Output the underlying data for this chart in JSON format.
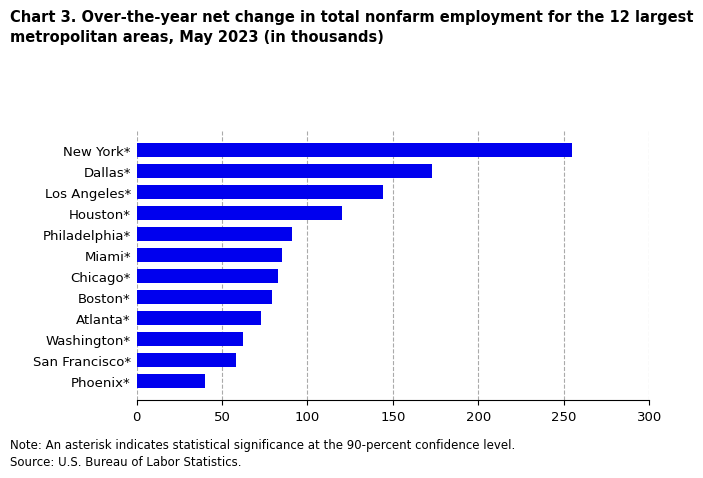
{
  "title_line1": "Chart 3. Over-the-year net change in total nonfarm employment for the 12 largest",
  "title_line2": "metropolitan areas, May 2023 (in thousands)",
  "categories": [
    "Phoenix*",
    "San Francisco*",
    "Washington*",
    "Atlanta*",
    "Boston*",
    "Chicago*",
    "Miami*",
    "Philadelphia*",
    "Houston*",
    "Los Angeles*",
    "Dallas*",
    "New York*"
  ],
  "values": [
    40,
    58,
    62,
    73,
    79,
    83,
    85,
    91,
    120,
    144,
    173,
    255
  ],
  "bar_color": "#0000EE",
  "xlim": [
    0,
    300
  ],
  "xticks": [
    0,
    50,
    100,
    150,
    200,
    250,
    300
  ],
  "note": "Note: An asterisk indicates statistical significance at the 90-percent confidence level.",
  "source": "Source: U.S. Bureau of Labor Statistics.",
  "background_color": "#ffffff",
  "title_fontsize": 10.5,
  "tick_fontsize": 9.5,
  "note_fontsize": 8.5
}
